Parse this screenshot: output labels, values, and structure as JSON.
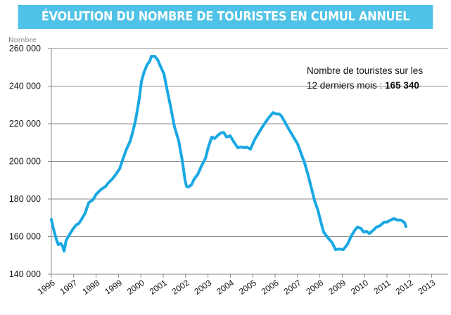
{
  "title": "ÉVOLUTION DU NOMBRE DE TOURISTES EN CUMUL ANNUEL",
  "annotation": {
    "line1": "Nombre de touristes sur les",
    "line2_prefix": "12 derniers mois : ",
    "value": "165 340"
  },
  "colors": {
    "title_band": "#4fc2e7",
    "series": "#19a8e3",
    "grid": "#8a8a8a"
  },
  "chart_data": {
    "type": "line",
    "title": "ÉVOLUTION DU NOMBRE DE TOURISTES EN CUMUL ANNUEL",
    "ylabel": "Nombre",
    "xlabel": "",
    "ylim": [
      140000,
      260000
    ],
    "xlim": [
      1996,
      2013.8
    ],
    "grid": "horizontal",
    "legend": "none",
    "yticks": [
      140000,
      160000,
      180000,
      200000,
      220000,
      240000,
      260000
    ],
    "ytick_labels": [
      "140 000",
      "160 000",
      "180 000",
      "200 000",
      "220 000",
      "240 000",
      "260 000"
    ],
    "xtick_labels": [
      "1996",
      "1997",
      "1998",
      "1999",
      "2000",
      "2001",
      "2002",
      "2003",
      "2004",
      "2005",
      "2006",
      "2007",
      "2008",
      "2009",
      "2010",
      "2011",
      "2012",
      "2013"
    ],
    "series": [
      {
        "x": [
          1996.0,
          1996.09,
          1996.22,
          1996.31,
          1996.41,
          1996.5,
          1996.57,
          1996.66,
          1996.79,
          1996.94,
          1997.1,
          1997.23,
          1997.35,
          1997.51,
          1997.67,
          1997.86,
          1998.01,
          1998.2,
          1998.42,
          1998.58,
          1998.74,
          1998.86,
          1999.05,
          1999.21,
          1999.36,
          1999.52,
          1999.62,
          1999.77,
          1999.93,
          2000.03,
          2000.15,
          2000.28,
          2000.4,
          2000.47,
          2000.62,
          2000.75,
          2000.87,
          2001.03,
          2001.19,
          2001.35,
          2001.5,
          2001.69,
          2001.85,
          2001.97,
          2002.04,
          2002.13,
          2002.26,
          2002.38,
          2002.54,
          2002.73,
          2002.89,
          2003.01,
          2003.17,
          2003.3,
          2003.42,
          2003.55,
          2003.7,
          2003.83,
          2003.99,
          2004.18,
          2004.33,
          2004.49,
          2004.65,
          2004.74,
          2004.9,
          2005.09,
          2005.28,
          2005.5,
          2005.72,
          2005.91,
          2006.06,
          2006.19,
          2006.28,
          2006.41,
          2006.6,
          2006.79,
          2007.01,
          2007.16,
          2007.32,
          2007.48,
          2007.64,
          2007.76,
          2007.92,
          2008.04,
          2008.17,
          2008.36,
          2008.55,
          2008.7,
          2008.86,
          2009.05,
          2009.24,
          2009.4,
          2009.55,
          2009.68,
          2009.84,
          2009.96,
          2010.09,
          2010.21,
          2010.37,
          2010.53,
          2010.69,
          2010.87,
          2011.0,
          2011.16,
          2011.31,
          2011.47,
          2011.63,
          2011.79,
          2011.85
        ],
        "values": [
          169200,
          164300,
          158600,
          155700,
          156400,
          155000,
          152300,
          158000,
          160600,
          163600,
          166200,
          167000,
          169200,
          172500,
          178000,
          179600,
          182600,
          184900,
          186700,
          189000,
          190800,
          192700,
          196000,
          201700,
          206500,
          210600,
          214800,
          222200,
          233500,
          242800,
          247700,
          251400,
          253300,
          255900,
          255900,
          254000,
          250700,
          246500,
          237200,
          227900,
          218500,
          211000,
          200600,
          190500,
          186700,
          186400,
          187500,
          190500,
          193100,
          198000,
          201700,
          207300,
          212900,
          212200,
          213600,
          215000,
          215400,
          212900,
          213600,
          209900,
          207300,
          207600,
          207300,
          207600,
          206500,
          211700,
          215400,
          219600,
          223300,
          225900,
          225200,
          225200,
          224100,
          221500,
          217400,
          213600,
          209200,
          204300,
          199100,
          192400,
          184900,
          179300,
          173700,
          168000,
          162400,
          159400,
          156800,
          153100,
          153400,
          153100,
          156000,
          160200,
          163200,
          165100,
          164300,
          162400,
          162800,
          161600,
          163200,
          165100,
          165800,
          167700,
          167700,
          168800,
          169600,
          168800,
          168800,
          167400,
          165340
        ]
      }
    ]
  }
}
